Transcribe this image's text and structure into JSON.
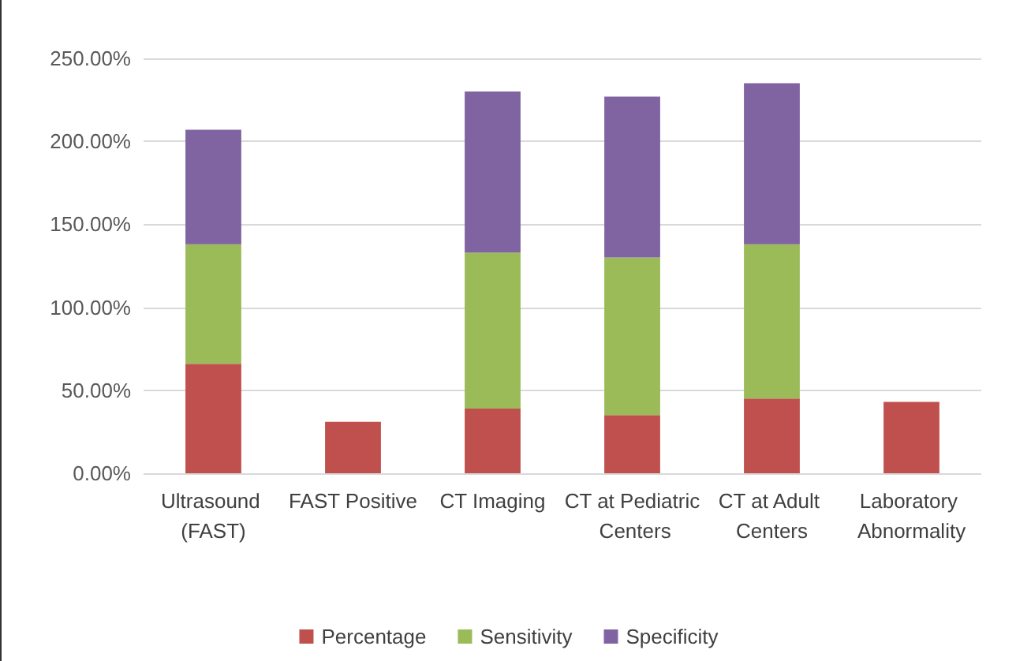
{
  "chart_data": {
    "type": "bar",
    "stacked": true,
    "categories": [
      "Ultrasound (FAST)",
      "FAST Positive",
      "CT Imaging",
      "CT at Pediatric Centers",
      "CT at Adult Centers",
      "Laboratory Abnormality"
    ],
    "series": [
      {
        "name": "Percentage",
        "color": "#c0504d",
        "values": [
          66,
          31,
          39,
          35,
          45,
          43
        ]
      },
      {
        "name": "Sensitivity",
        "color": "#9bbb59",
        "values": [
          72,
          null,
          94,
          95,
          93,
          null
        ]
      },
      {
        "name": "Specificity",
        "color": "#8064a2",
        "values": [
          69,
          null,
          97,
          97,
          97,
          null
        ]
      }
    ],
    "ylim": [
      0,
      250
    ],
    "yticks": [
      {
        "value": 0,
        "label": "0.00%"
      },
      {
        "value": 50,
        "label": "50.00%"
      },
      {
        "value": 100,
        "label": "100.00%"
      },
      {
        "value": 150,
        "label": "150.00%"
      },
      {
        "value": 200,
        "label": "200.00%"
      },
      {
        "value": 250,
        "label": "250.00%"
      }
    ],
    "grid": "y",
    "legend": "bottom"
  }
}
